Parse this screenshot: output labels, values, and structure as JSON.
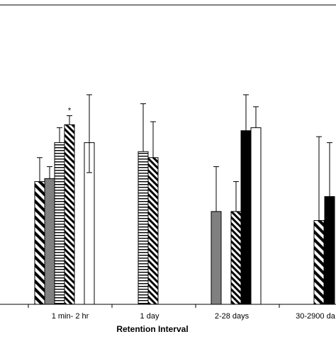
{
  "chart_data": {
    "type": "bar",
    "title": "",
    "xlabel": "Retention Interval",
    "ylabel": "",
    "categories": [
      "1 min- 2 hr",
      "1 day",
      "2-28 days",
      "30-2900 da"
    ],
    "ylim": [
      0,
      100
    ],
    "grid": false,
    "legend": "none",
    "series": [
      {
        "pattern": "hatch-diagonal",
        "color": "#000000",
        "values": [
          41,
          null,
          null,
          28
        ],
        "err_high": [
          8,
          null,
          null,
          28
        ],
        "err_low": [
          0,
          null,
          null,
          0
        ]
      },
      {
        "pattern": "solid-gray",
        "color": "#808080",
        "values": [
          42,
          null,
          31,
          null
        ],
        "err_high": [
          4,
          null,
          15,
          null
        ],
        "err_low": [
          0,
          null,
          0,
          null
        ]
      },
      {
        "pattern": "hatch-horizontal",
        "color": "#000000",
        "values": [
          54,
          51,
          null,
          null
        ],
        "err_high": [
          5,
          16,
          null,
          null
        ],
        "err_low": [
          0,
          0,
          null,
          null
        ]
      },
      {
        "pattern": "hatch-diagonal-dense",
        "color": "#000000",
        "values": [
          60,
          49,
          31,
          null
        ],
        "err_high": [
          3,
          12,
          10,
          null
        ],
        "err_low": [
          0,
          0,
          0,
          null
        ]
      },
      {
        "pattern": "solid-black",
        "color": "#000000",
        "values": [
          null,
          null,
          58,
          36
        ],
        "err_high": [
          null,
          null,
          12,
          18
        ],
        "err_low": [
          null,
          null,
          0,
          0
        ]
      },
      {
        "pattern": "solid-white",
        "color": "#ffffff",
        "values": [
          54,
          null,
          59,
          null
        ],
        "err_high": [
          16,
          null,
          7,
          null
        ],
        "err_low": [
          10,
          null,
          0,
          null
        ]
      }
    ],
    "annotations": [
      {
        "category": "1 min- 2 hr",
        "series_index": 3,
        "text": "*"
      }
    ]
  }
}
